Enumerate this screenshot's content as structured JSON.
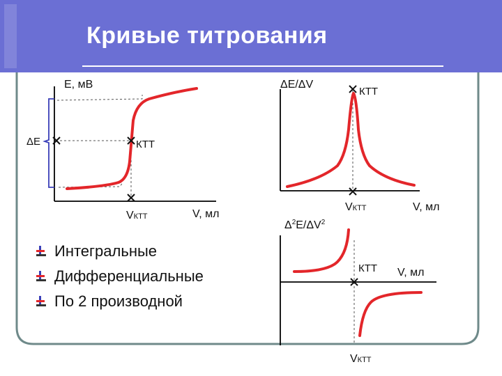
{
  "slide": {
    "title": "Кривые титрования",
    "colors": {
      "header": "#6b6fd4",
      "frame": "#6f8a8a",
      "curve": "#e3262a",
      "axis": "#000000"
    }
  },
  "graph_integral": {
    "y_label": "E, мВ",
    "delta_label": "ΔE",
    "point_label": "КТТ",
    "x_point_label": "V",
    "x_point_sub": "КТТ",
    "x_label": "V, мл"
  },
  "graph_first": {
    "y_label": "ΔE/ΔV",
    "point_label": "КТТ",
    "x_point_label": "V",
    "x_point_sub": "КТТ",
    "x_label": "V, мл"
  },
  "graph_second": {
    "y_label_base": "Δ",
    "y_label_sup1": "2",
    "y_label_mid": "E/ΔV",
    "y_label_sup2": "2",
    "point_label": "КТТ",
    "x_label": "V, мл",
    "x_point_label": "V",
    "x_point_sub": "КТТ"
  },
  "bullets": [
    {
      "text": "Интегральные",
      "icon": "bullet-icon"
    },
    {
      "text": "Дифференциальные",
      "icon": "bullet-icon"
    },
    {
      "text": "По 2 производной",
      "icon": "bullet-icon"
    }
  ]
}
